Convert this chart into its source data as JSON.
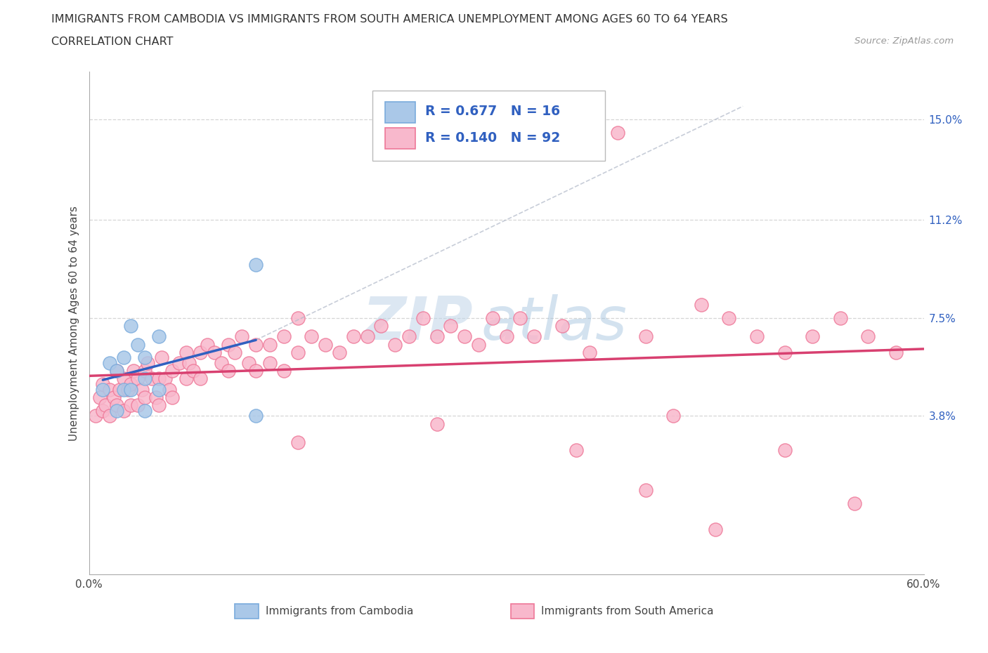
{
  "title_line1": "IMMIGRANTS FROM CAMBODIA VS IMMIGRANTS FROM SOUTH AMERICA UNEMPLOYMENT AMONG AGES 60 TO 64 YEARS",
  "title_line2": "CORRELATION CHART",
  "source_text": "Source: ZipAtlas.com",
  "ylabel": "Unemployment Among Ages 60 to 64 years",
  "xmin": 0.0,
  "xmax": 0.6,
  "ymin": -0.022,
  "ymax": 0.168,
  "right_yticks": [
    0.038,
    0.075,
    0.112,
    0.15
  ],
  "right_yticklabels": [
    "3.8%",
    "7.5%",
    "11.2%",
    "15.0%"
  ],
  "xtick_positions": [
    0.0,
    0.1,
    0.2,
    0.3,
    0.4,
    0.5,
    0.6
  ],
  "xtick_labels": [
    "0.0%",
    "",
    "",
    "",
    "",
    "",
    "60.0%"
  ],
  "watermark_zip": "ZIP",
  "watermark_atlas": "atlas",
  "cambodia_fill": "#aac8e8",
  "cambodia_edge": "#7aabdc",
  "sa_fill": "#f8b8cc",
  "sa_edge": "#ee7898",
  "R_cambodia": 0.677,
  "N_cambodia": 16,
  "R_sa": 0.14,
  "N_sa": 92,
  "legend_label_cambodia": "Immigrants from Cambodia",
  "legend_label_sa": "Immigrants from South America",
  "line_blue": "#3060c0",
  "line_pink": "#d84070",
  "line_dashed_gray": "#b0b8c8",
  "grid_color": "#cccccc",
  "cambodia_x": [
    0.01,
    0.015,
    0.02,
    0.02,
    0.025,
    0.025,
    0.03,
    0.03,
    0.035,
    0.04,
    0.04,
    0.04,
    0.05,
    0.05,
    0.12,
    0.12
  ],
  "cambodia_y": [
    0.048,
    0.058,
    0.055,
    0.04,
    0.06,
    0.048,
    0.072,
    0.048,
    0.065,
    0.06,
    0.052,
    0.04,
    0.068,
    0.048,
    0.095,
    0.038
  ],
  "sa_x": [
    0.005,
    0.008,
    0.01,
    0.01,
    0.012,
    0.015,
    0.015,
    0.018,
    0.02,
    0.02,
    0.022,
    0.025,
    0.025,
    0.028,
    0.03,
    0.03,
    0.032,
    0.035,
    0.035,
    0.038,
    0.04,
    0.04,
    0.042,
    0.045,
    0.048,
    0.05,
    0.05,
    0.052,
    0.055,
    0.058,
    0.06,
    0.06,
    0.065,
    0.07,
    0.07,
    0.072,
    0.075,
    0.08,
    0.08,
    0.085,
    0.09,
    0.095,
    0.1,
    0.1,
    0.105,
    0.11,
    0.115,
    0.12,
    0.12,
    0.13,
    0.13,
    0.14,
    0.14,
    0.15,
    0.15,
    0.16,
    0.17,
    0.18,
    0.19,
    0.2,
    0.21,
    0.22,
    0.23,
    0.24,
    0.25,
    0.26,
    0.27,
    0.28,
    0.29,
    0.3,
    0.31,
    0.32,
    0.34,
    0.36,
    0.38,
    0.4,
    0.42,
    0.44,
    0.46,
    0.48,
    0.5,
    0.52,
    0.54,
    0.56,
    0.58,
    0.35,
    0.4,
    0.45,
    0.5,
    0.55,
    0.25,
    0.15
  ],
  "sa_y": [
    0.038,
    0.045,
    0.05,
    0.04,
    0.042,
    0.048,
    0.038,
    0.045,
    0.055,
    0.042,
    0.048,
    0.052,
    0.04,
    0.048,
    0.05,
    0.042,
    0.055,
    0.052,
    0.042,
    0.048,
    0.055,
    0.045,
    0.058,
    0.052,
    0.045,
    0.052,
    0.042,
    0.06,
    0.052,
    0.048,
    0.055,
    0.045,
    0.058,
    0.062,
    0.052,
    0.058,
    0.055,
    0.062,
    0.052,
    0.065,
    0.062,
    0.058,
    0.065,
    0.055,
    0.062,
    0.068,
    0.058,
    0.065,
    0.055,
    0.065,
    0.058,
    0.068,
    0.055,
    0.075,
    0.062,
    0.068,
    0.065,
    0.062,
    0.068,
    0.068,
    0.072,
    0.065,
    0.068,
    0.075,
    0.068,
    0.072,
    0.068,
    0.065,
    0.075,
    0.068,
    0.075,
    0.068,
    0.072,
    0.062,
    0.145,
    0.068,
    0.038,
    0.08,
    0.075,
    0.068,
    0.062,
    0.068,
    0.075,
    0.068,
    0.062,
    0.025,
    0.01,
    -0.005,
    0.025,
    0.005,
    0.035,
    0.028
  ],
  "background_color": "#ffffff"
}
